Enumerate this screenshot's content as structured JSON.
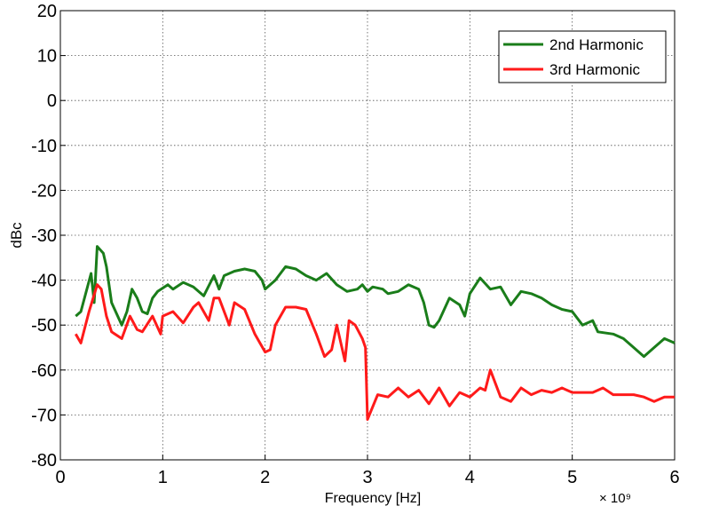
{
  "chart_data": {
    "type": "line",
    "xlabel": "Frequency [Hz]",
    "ylabel": "dBc",
    "x_multiplier": "× 10⁹",
    "xlim": [
      0,
      6
    ],
    "xticks": [
      0,
      1,
      2,
      3,
      4,
      5,
      6
    ],
    "ylim": [
      -80,
      20
    ],
    "yticks": [
      -80,
      -70,
      -60,
      -50,
      -40,
      -30,
      -20,
      -10,
      0,
      10,
      20
    ],
    "grid": true,
    "legend": "upper right",
    "series": [
      {
        "name": "2nd Harmonic",
        "color": "#1a7d1a",
        "x": [
          0.15,
          0.2,
          0.3,
          0.33,
          0.36,
          0.42,
          0.45,
          0.5,
          0.6,
          0.65,
          0.7,
          0.75,
          0.8,
          0.85,
          0.9,
          0.95,
          1.05,
          1.1,
          1.2,
          1.3,
          1.4,
          1.5,
          1.55,
          1.6,
          1.7,
          1.8,
          1.9,
          1.97,
          2.0,
          2.1,
          2.2,
          2.3,
          2.4,
          2.5,
          2.6,
          2.7,
          2.8,
          2.9,
          2.95,
          3.0,
          3.05,
          3.15,
          3.2,
          3.3,
          3.4,
          3.5,
          3.55,
          3.6,
          3.65,
          3.7,
          3.8,
          3.9,
          3.95,
          4.0,
          4.1,
          4.2,
          4.3,
          4.4,
          4.5,
          4.6,
          4.7,
          4.8,
          4.9,
          5.0,
          5.1,
          5.2,
          5.25,
          5.4,
          5.5,
          5.6,
          5.7,
          5.8,
          5.9,
          6.0
        ],
        "values": [
          -48,
          -47,
          -38.5,
          -45,
          -32.5,
          -34,
          -37,
          -45,
          -50,
          -47,
          -42,
          -44,
          -47,
          -47.5,
          -44,
          -42.5,
          -41,
          -42,
          -40.5,
          -41.5,
          -43.5,
          -39,
          -42,
          -39,
          -38,
          -37.5,
          -38,
          -40,
          -42,
          -40,
          -37,
          -37.5,
          -39,
          -40,
          -38.5,
          -41,
          -42.5,
          -42,
          -41,
          -42.5,
          -41.5,
          -42,
          -43,
          -42.5,
          -41,
          -42,
          -45,
          -50,
          -50.5,
          -49,
          -44,
          -45.5,
          -48,
          -43,
          -39.5,
          -42,
          -41.5,
          -45.5,
          -42.5,
          -43,
          -44,
          -45.5,
          -46.5,
          -47,
          -50,
          -49,
          -51.5,
          -52,
          -53,
          -55,
          -57,
          -55,
          -53,
          -54
        ]
      },
      {
        "name": "3rd Harmonic",
        "color": "#ff1a1a",
        "x": [
          0.15,
          0.2,
          0.28,
          0.3,
          0.36,
          0.4,
          0.45,
          0.5,
          0.6,
          0.68,
          0.75,
          0.8,
          0.9,
          0.98,
          1.0,
          1.1,
          1.2,
          1.3,
          1.35,
          1.45,
          1.5,
          1.55,
          1.65,
          1.7,
          1.8,
          1.9,
          2.0,
          2.05,
          2.1,
          2.2,
          2.3,
          2.4,
          2.5,
          2.58,
          2.65,
          2.7,
          2.78,
          2.82,
          2.88,
          2.95,
          2.98,
          3.0,
          3.1,
          3.2,
          3.3,
          3.4,
          3.5,
          3.6,
          3.7,
          3.8,
          3.9,
          4.0,
          4.1,
          4.15,
          4.2,
          4.3,
          4.4,
          4.5,
          4.6,
          4.7,
          4.8,
          4.9,
          5.0,
          5.1,
          5.2,
          5.3,
          5.4,
          5.5,
          5.6,
          5.7,
          5.8,
          5.9,
          6.0
        ],
        "values": [
          -52,
          -54,
          -47,
          -45.5,
          -41,
          -42,
          -48,
          -51.5,
          -53,
          -48,
          -51,
          -51.5,
          -48,
          -52,
          -48,
          -47,
          -49.5,
          -46,
          -45,
          -49,
          -44,
          -44,
          -50,
          -45,
          -46.5,
          -52,
          -56,
          -55.5,
          -50,
          -46,
          -46,
          -46.5,
          -52,
          -57,
          -55.5,
          -50,
          -58,
          -49,
          -50,
          -53,
          -55,
          -71,
          -65.5,
          -66,
          -64,
          -66,
          -64.5,
          -67.5,
          -64,
          -68,
          -65,
          -66,
          -64,
          -64.5,
          -60,
          -66,
          -67,
          -64,
          -65.5,
          -64.5,
          -65,
          -64,
          -65,
          -65,
          -65,
          -64,
          -65.5,
          -65.5,
          -65.5,
          -66,
          -67,
          -66,
          -66
        ]
      }
    ]
  }
}
